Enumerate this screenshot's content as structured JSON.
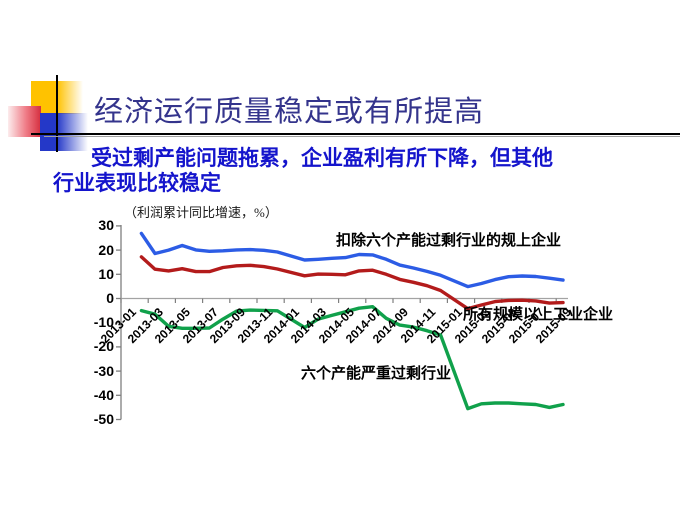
{
  "slide": {
    "title": "经济运行质量稳定或有所提高",
    "subtitle_line1": "受过剩产能问题拖累，企业盈利有所下降，但其他",
    "subtitle_line2": "行业表现比较稳定",
    "colors": {
      "title": "#34348c",
      "subtitle": "#1414cc",
      "decoration_yellow": "#ffc200",
      "decoration_blue": "#2438c8",
      "decoration_red": "#d52e3e"
    }
  },
  "chart_data": {
    "type": "line",
    "axis_caption": "（利润累计同比增速，%）",
    "unit": "%",
    "ylim": [
      -50,
      30
    ],
    "y_ticks": [
      30,
      20,
      10,
      0,
      -10,
      -20,
      -30,
      -40,
      -50
    ],
    "x_tick_labels": [
      "2013-01",
      "2013-03",
      "2013-05",
      "2013-07",
      "2013-09",
      "2013-11",
      "2014-01",
      "2014-03",
      "2014-05",
      "2014-07",
      "2014-09",
      "2014-11",
      "2015-01",
      "2015-03",
      "2015-05",
      "2015-07",
      "2015-09"
    ],
    "grid": "off",
    "legend_position": "inline-annotations",
    "series": [
      {
        "name": "扣除六个产能过剩行业的规上企业",
        "color": "#2c5ce5",
        "x": [
          "2013-02",
          "2013-03",
          "2013-04",
          "2013-05",
          "2013-06",
          "2013-07",
          "2013-08",
          "2013-09",
          "2013-10",
          "2013-11",
          "2013-12",
          "2014-02",
          "2014-03",
          "2014-04",
          "2014-05",
          "2014-06",
          "2014-07",
          "2014-08",
          "2014-09",
          "2014-10",
          "2014-11",
          "2014-12",
          "2015-02",
          "2015-03",
          "2015-04",
          "2015-05",
          "2015-06",
          "2015-07",
          "2015-08",
          "2015-09"
        ],
        "values": [
          26.9,
          18.6,
          20.0,
          21.9,
          20.1,
          19.5,
          19.7,
          20.1,
          20.2,
          19.9,
          19.2,
          15.9,
          16.2,
          16.6,
          16.9,
          18.2,
          18.0,
          16.2,
          13.8,
          12.6,
          11.2,
          9.6,
          4.9,
          6.2,
          7.8,
          9.0,
          9.3,
          9.1,
          8.4,
          7.6
        ]
      },
      {
        "name": "所有规模以上工业企业",
        "color": "#b31b1b",
        "x": [
          "2013-02",
          "2013-03",
          "2013-04",
          "2013-05",
          "2013-06",
          "2013-07",
          "2013-08",
          "2013-09",
          "2013-10",
          "2013-11",
          "2013-12",
          "2014-02",
          "2014-03",
          "2014-04",
          "2014-05",
          "2014-06",
          "2014-07",
          "2014-08",
          "2014-09",
          "2014-10",
          "2014-11",
          "2014-12",
          "2015-02",
          "2015-03",
          "2015-04",
          "2015-05",
          "2015-06",
          "2015-07",
          "2015-08",
          "2015-09"
        ],
        "values": [
          17.2,
          12.1,
          11.4,
          12.3,
          11.1,
          11.1,
          12.8,
          13.5,
          13.7,
          13.2,
          12.2,
          9.4,
          10.1,
          10.0,
          9.8,
          11.4,
          11.7,
          10.0,
          7.9,
          6.7,
          5.3,
          3.3,
          -4.2,
          -2.7,
          -1.3,
          -0.8,
          -0.7,
          -1.0,
          -1.9,
          -1.7
        ]
      },
      {
        "name": "六个产能严重过剩行业",
        "color": "#10a14b",
        "x": [
          "2013-02",
          "2013-03",
          "2013-04",
          "2013-05",
          "2013-06",
          "2013-07",
          "2013-08",
          "2013-09",
          "2013-10",
          "2013-11",
          "2013-12",
          "2014-02",
          "2014-03",
          "2014-04",
          "2014-05",
          "2014-06",
          "2014-07",
          "2014-08",
          "2014-09",
          "2014-10",
          "2014-11",
          "2014-12",
          "2015-02",
          "2015-03",
          "2015-04",
          "2015-05",
          "2015-06",
          "2015-07",
          "2015-08",
          "2015-09"
        ],
        "values": [
          -5.0,
          -6.5,
          -11.5,
          -12.3,
          -12.3,
          -12.2,
          -8.5,
          -5.2,
          -4.8,
          -4.9,
          -5.1,
          -12.0,
          -8.5,
          -7.0,
          -5.5,
          -4.0,
          -3.4,
          -8.2,
          -11.0,
          -11.8,
          -13.3,
          -15.1,
          -45.5,
          -43.5,
          -43.2,
          -43.2,
          -43.5,
          -43.8,
          -45.0,
          -43.8
        ]
      }
    ]
  }
}
